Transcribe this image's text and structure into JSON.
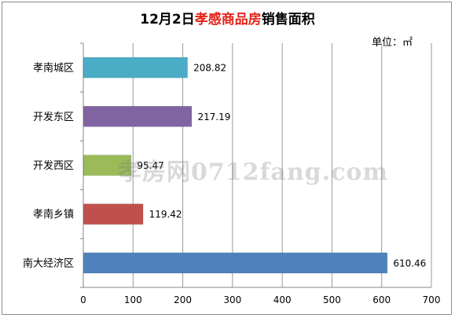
{
  "chart_data": {
    "type": "bar",
    "orientation": "horizontal",
    "title_prefix": "12月2日",
    "title_highlight": "孝感商品房",
    "title_suffix": "销售面积",
    "unit": "单位：㎡",
    "categories": [
      "孝南城区",
      "开发东区",
      "开发西区",
      "孝南乡镇",
      "南大经济区"
    ],
    "values": [
      208.82,
      217.19,
      95.47,
      119.42,
      610.46
    ],
    "value_labels": [
      "208.82",
      "217.19",
      "95.47",
      "119.42",
      "610.46"
    ],
    "colors": [
      "#4bacc6",
      "#8064a2",
      "#9bbb59",
      "#c0504d",
      "#4f81bd"
    ],
    "xlim": [
      0,
      700
    ],
    "xticks": [
      0,
      100,
      200,
      300,
      400,
      500,
      600,
      700
    ],
    "grid": "vertical",
    "legend": "none"
  },
  "watermark": "孝房网0712fang.com"
}
